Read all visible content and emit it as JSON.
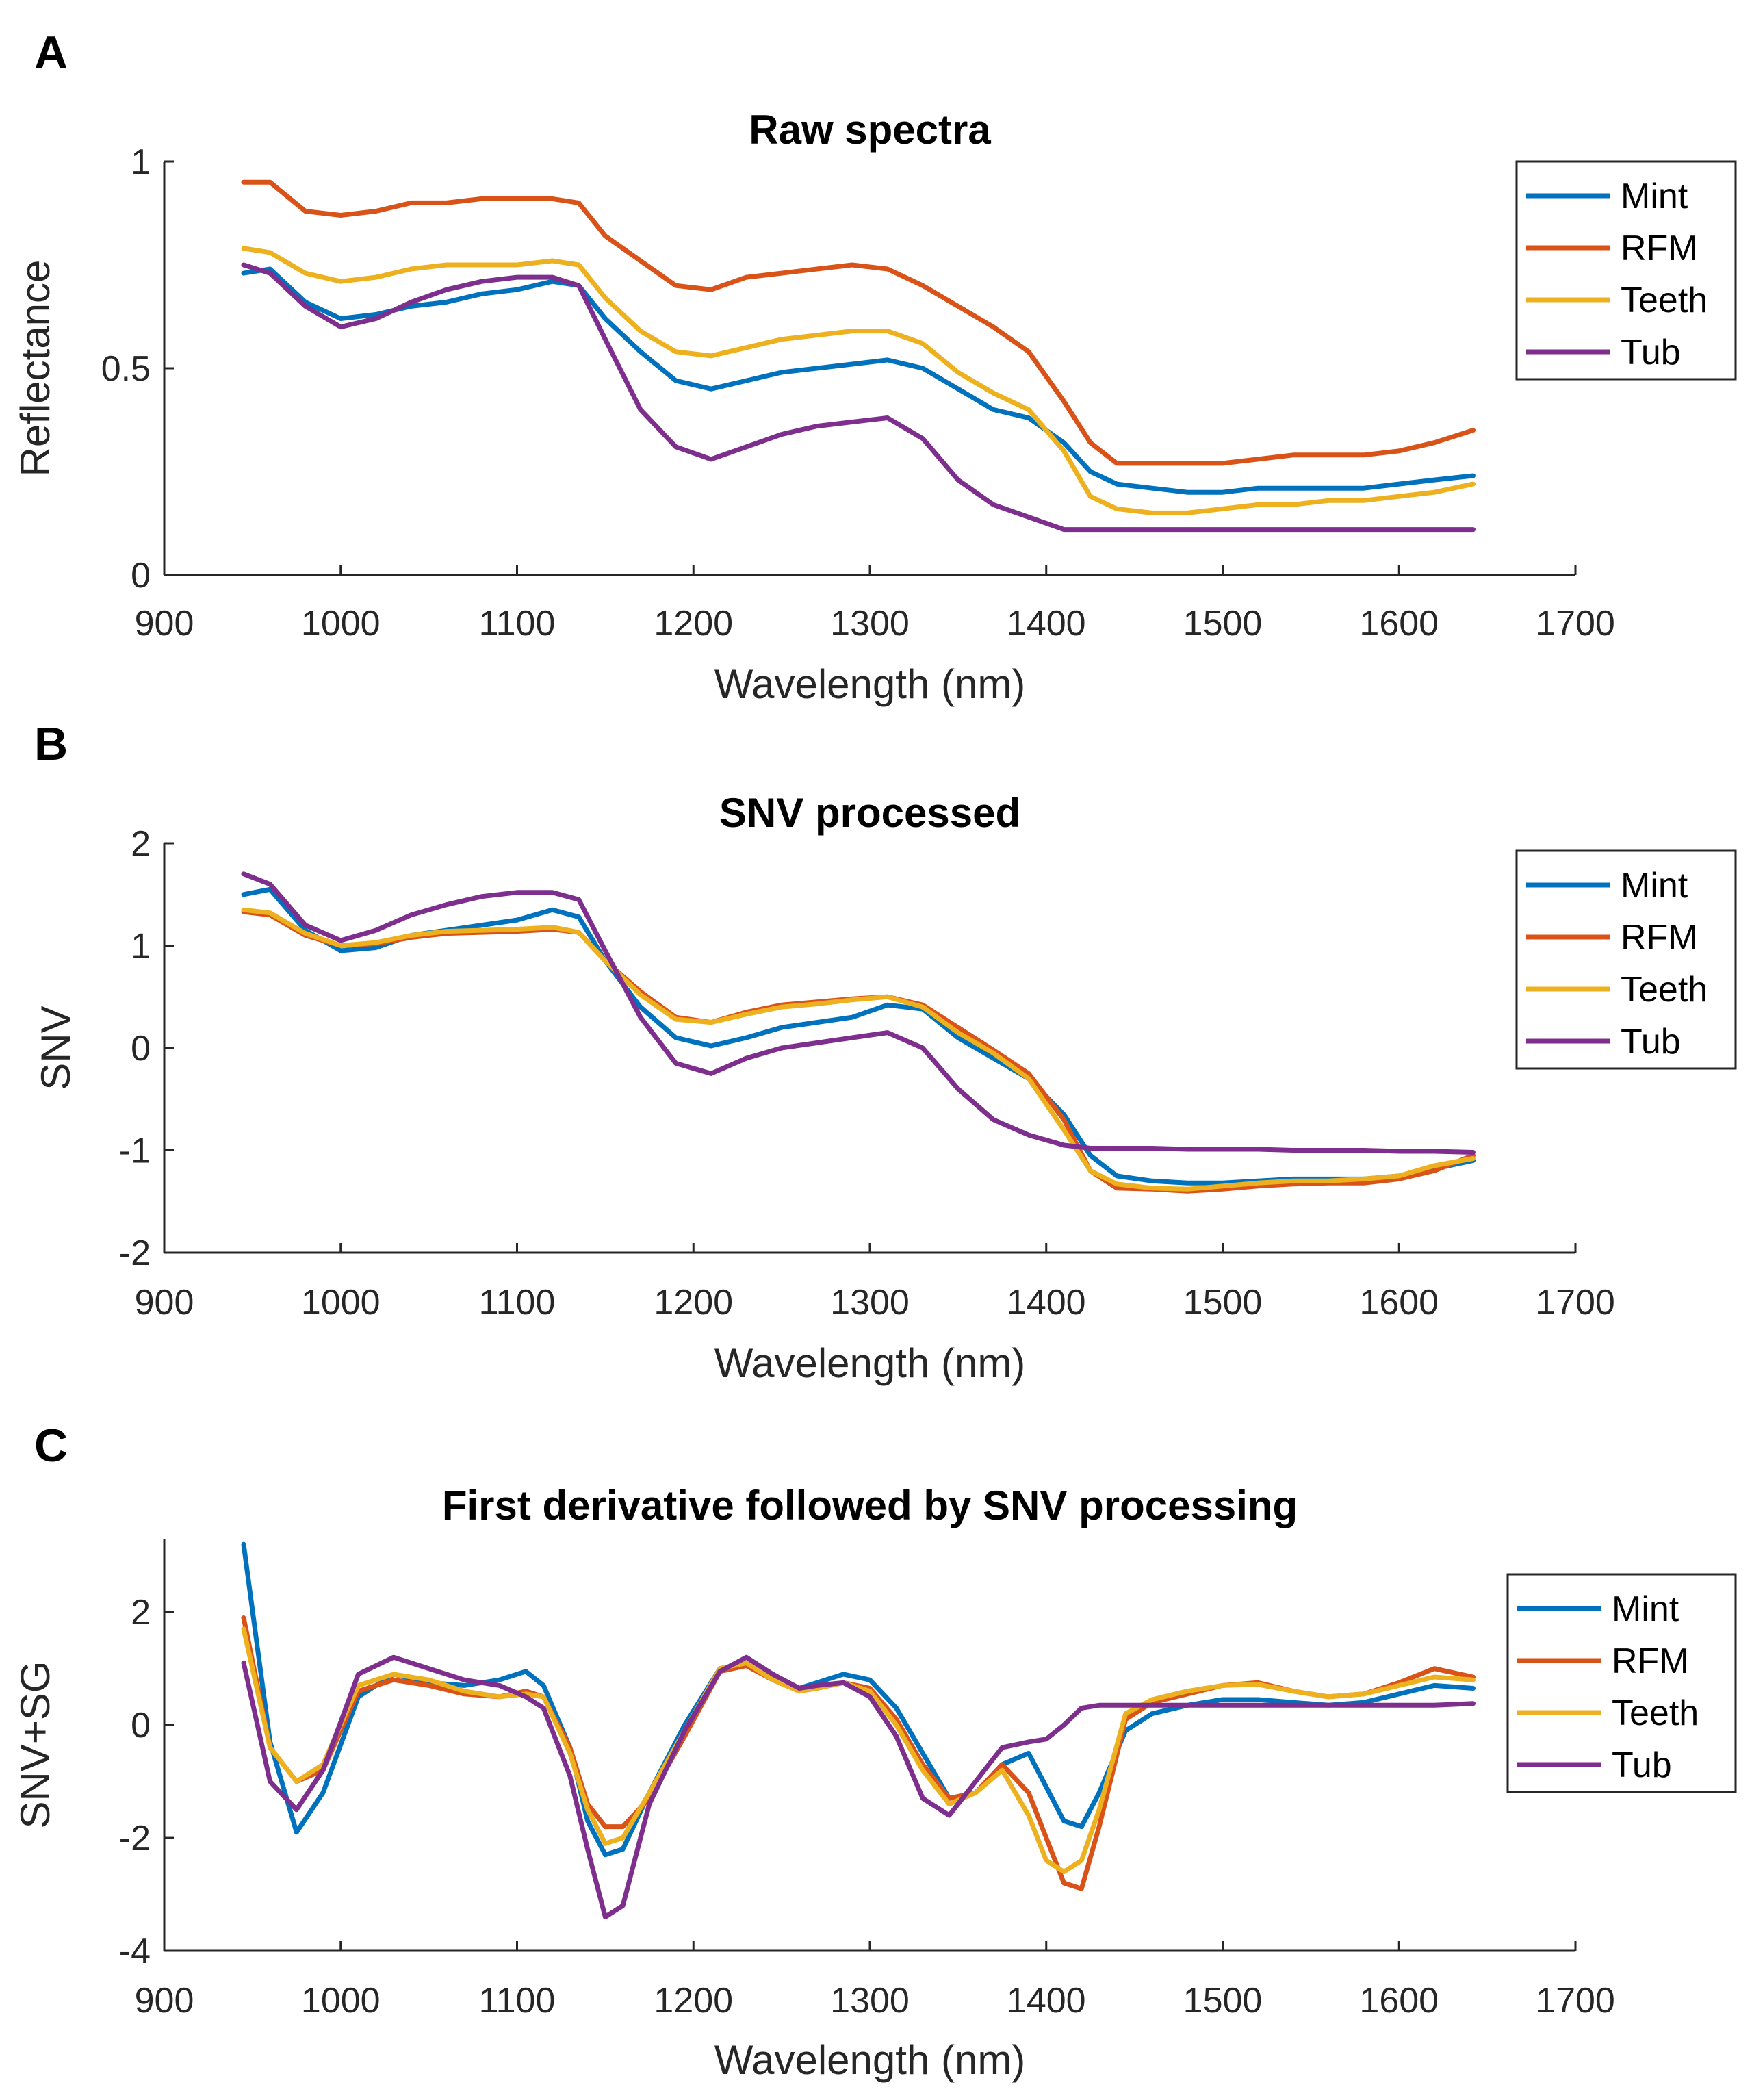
{
  "colors": {
    "Mint": "#0072BD",
    "RFM": "#D95319",
    "Teeth": "#EDB120",
    "Tub": "#7E2F8E"
  },
  "chart_data": [
    {
      "panel_letter": "A",
      "type": "line",
      "title": "Raw spectra",
      "xlabel": "Wavelength (nm)",
      "ylabel": "Reflectance",
      "xlim": [
        900,
        1700
      ],
      "ylim": [
        0,
        1
      ],
      "xticks": [
        900,
        1000,
        1100,
        1200,
        1300,
        1400,
        1500,
        1600,
        1700
      ],
      "yticks": [
        0,
        0.5,
        1
      ],
      "ytick_labels": [
        "0",
        "0.5",
        "1"
      ],
      "legend_position": "top-right",
      "x": [
        945,
        960,
        980,
        1000,
        1020,
        1040,
        1060,
        1080,
        1100,
        1120,
        1135,
        1150,
        1170,
        1190,
        1210,
        1230,
        1250,
        1270,
        1290,
        1310,
        1330,
        1350,
        1370,
        1390,
        1410,
        1425,
        1440,
        1460,
        1480,
        1500,
        1520,
        1540,
        1560,
        1580,
        1600,
        1620,
        1642
      ],
      "series": [
        {
          "name": "Mint",
          "values": [
            0.73,
            0.74,
            0.66,
            0.62,
            0.63,
            0.65,
            0.66,
            0.68,
            0.69,
            0.71,
            0.7,
            0.62,
            0.54,
            0.47,
            0.45,
            0.47,
            0.49,
            0.5,
            0.51,
            0.52,
            0.5,
            0.45,
            0.4,
            0.38,
            0.32,
            0.25,
            0.22,
            0.21,
            0.2,
            0.2,
            0.21,
            0.21,
            0.21,
            0.21,
            0.22,
            0.23,
            0.24
          ]
        },
        {
          "name": "RFM",
          "values": [
            0.95,
            0.95,
            0.88,
            0.87,
            0.88,
            0.9,
            0.9,
            0.91,
            0.91,
            0.91,
            0.9,
            0.82,
            0.76,
            0.7,
            0.69,
            0.72,
            0.73,
            0.74,
            0.75,
            0.74,
            0.7,
            0.65,
            0.6,
            0.54,
            0.42,
            0.32,
            0.27,
            0.27,
            0.27,
            0.27,
            0.28,
            0.29,
            0.29,
            0.29,
            0.3,
            0.32,
            0.35
          ]
        },
        {
          "name": "Teeth",
          "values": [
            0.79,
            0.78,
            0.73,
            0.71,
            0.72,
            0.74,
            0.75,
            0.75,
            0.75,
            0.76,
            0.75,
            0.67,
            0.59,
            0.54,
            0.53,
            0.55,
            0.57,
            0.58,
            0.59,
            0.59,
            0.56,
            0.49,
            0.44,
            0.4,
            0.3,
            0.19,
            0.16,
            0.15,
            0.15,
            0.16,
            0.17,
            0.17,
            0.18,
            0.18,
            0.19,
            0.2,
            0.22
          ]
        },
        {
          "name": "Tub",
          "values": [
            0.75,
            0.73,
            0.65,
            0.6,
            0.62,
            0.66,
            0.69,
            0.71,
            0.72,
            0.72,
            0.7,
            0.57,
            0.4,
            0.31,
            0.28,
            0.31,
            0.34,
            0.36,
            0.37,
            0.38,
            0.33,
            0.23,
            0.17,
            0.14,
            0.11,
            0.11,
            0.11,
            0.11,
            0.11,
            0.11,
            0.11,
            0.11,
            0.11,
            0.11,
            0.11,
            0.11,
            0.11
          ]
        }
      ]
    },
    {
      "panel_letter": "B",
      "type": "line",
      "title": "SNV processed",
      "xlabel": "Wavelength (nm)",
      "ylabel": "SNV",
      "xlim": [
        900,
        1700
      ],
      "ylim": [
        -2,
        2
      ],
      "xticks": [
        900,
        1000,
        1100,
        1200,
        1300,
        1400,
        1500,
        1600,
        1700
      ],
      "yticks": [
        -2,
        -1,
        0,
        1,
        2
      ],
      "ytick_labels": [
        "-2",
        "-1",
        "0",
        "1",
        "2"
      ],
      "legend_position": "top-right",
      "x": [
        945,
        960,
        980,
        1000,
        1020,
        1040,
        1060,
        1080,
        1100,
        1120,
        1135,
        1150,
        1170,
        1190,
        1210,
        1230,
        1250,
        1270,
        1290,
        1310,
        1330,
        1350,
        1370,
        1390,
        1410,
        1425,
        1440,
        1460,
        1480,
        1500,
        1520,
        1540,
        1560,
        1580,
        1600,
        1620,
        1642
      ],
      "series": [
        {
          "name": "Mint",
          "values": [
            1.5,
            1.55,
            1.15,
            0.95,
            0.98,
            1.1,
            1.15,
            1.2,
            1.25,
            1.35,
            1.28,
            0.85,
            0.4,
            0.1,
            0.02,
            0.1,
            0.2,
            0.25,
            0.3,
            0.42,
            0.38,
            0.1,
            -0.1,
            -0.3,
            -0.65,
            -1.05,
            -1.25,
            -1.3,
            -1.32,
            -1.32,
            -1.3,
            -1.28,
            -1.28,
            -1.28,
            -1.25,
            -1.18,
            -1.1
          ]
        },
        {
          "name": "RFM",
          "values": [
            1.33,
            1.3,
            1.1,
            1.0,
            1.02,
            1.08,
            1.12,
            1.13,
            1.14,
            1.16,
            1.13,
            0.85,
            0.55,
            0.3,
            0.25,
            0.35,
            0.42,
            0.45,
            0.48,
            0.5,
            0.42,
            0.2,
            -0.02,
            -0.25,
            -0.7,
            -1.2,
            -1.37,
            -1.38,
            -1.4,
            -1.38,
            -1.35,
            -1.33,
            -1.32,
            -1.32,
            -1.28,
            -1.2,
            -1.05
          ]
        },
        {
          "name": "Teeth",
          "values": [
            1.35,
            1.32,
            1.12,
            1.0,
            1.03,
            1.1,
            1.14,
            1.15,
            1.16,
            1.18,
            1.13,
            0.85,
            0.52,
            0.28,
            0.25,
            0.33,
            0.4,
            0.43,
            0.47,
            0.5,
            0.4,
            0.15,
            -0.05,
            -0.3,
            -0.8,
            -1.2,
            -1.33,
            -1.37,
            -1.38,
            -1.35,
            -1.32,
            -1.3,
            -1.3,
            -1.28,
            -1.25,
            -1.15,
            -1.08
          ]
        },
        {
          "name": "Tub",
          "values": [
            1.7,
            1.6,
            1.2,
            1.05,
            1.15,
            1.3,
            1.4,
            1.48,
            1.52,
            1.52,
            1.45,
            0.95,
            0.3,
            -0.15,
            -0.25,
            -0.1,
            0.0,
            0.05,
            0.1,
            0.15,
            0.0,
            -0.4,
            -0.7,
            -0.85,
            -0.95,
            -0.98,
            -0.98,
            -0.98,
            -0.99,
            -0.99,
            -0.99,
            -1.0,
            -1.0,
            -1.0,
            -1.01,
            -1.01,
            -1.02
          ]
        }
      ]
    },
    {
      "panel_letter": "C",
      "type": "line",
      "title": "First derivative followed by SNV processing",
      "xlabel": "Wavelength (nm)",
      "ylabel": "SNV+SG",
      "xlim": [
        900,
        1700
      ],
      "ylim": [
        -4,
        3.3
      ],
      "xticks": [
        900,
        1000,
        1100,
        1200,
        1300,
        1400,
        1500,
        1600,
        1700
      ],
      "yticks": [
        -4,
        -2,
        0,
        2
      ],
      "ytick_labels": [
        "-4",
        "-2",
        "0",
        "2"
      ],
      "legend_position": "top-right",
      "x": [
        945,
        960,
        975,
        990,
        1010,
        1030,
        1050,
        1070,
        1090,
        1105,
        1115,
        1130,
        1140,
        1150,
        1160,
        1175,
        1195,
        1215,
        1230,
        1245,
        1260,
        1270,
        1285,
        1300,
        1315,
        1330,
        1345,
        1360,
        1375,
        1390,
        1400,
        1410,
        1420,
        1430,
        1445,
        1460,
        1480,
        1500,
        1520,
        1540,
        1560,
        1580,
        1600,
        1620,
        1642
      ],
      "series": [
        {
          "name": "Mint",
          "values": [
            3.2,
            -0.3,
            -1.9,
            -1.2,
            0.5,
            0.9,
            0.75,
            0.7,
            0.8,
            0.95,
            0.7,
            -0.4,
            -1.7,
            -2.3,
            -2.2,
            -1.2,
            0.0,
            1.0,
            1.1,
            0.85,
            0.65,
            0.75,
            0.9,
            0.8,
            0.3,
            -0.5,
            -1.3,
            -1.2,
            -0.7,
            -0.5,
            -1.1,
            -1.7,
            -1.8,
            -1.2,
            -0.1,
            0.2,
            0.35,
            0.45,
            0.45,
            0.4,
            0.35,
            0.4,
            0.55,
            0.7,
            0.65
          ]
        },
        {
          "name": "RFM",
          "values": [
            1.9,
            -0.4,
            -1.0,
            -0.8,
            0.6,
            0.8,
            0.7,
            0.55,
            0.5,
            0.6,
            0.5,
            -0.4,
            -1.4,
            -1.8,
            -1.8,
            -1.3,
            -0.2,
            0.95,
            1.05,
            0.8,
            0.6,
            0.65,
            0.75,
            0.65,
            0.1,
            -0.7,
            -1.3,
            -1.2,
            -0.7,
            -1.2,
            -2.0,
            -2.8,
            -2.9,
            -1.8,
            0.1,
            0.4,
            0.55,
            0.7,
            0.75,
            0.6,
            0.5,
            0.55,
            0.75,
            1.0,
            0.85
          ]
        },
        {
          "name": "Teeth",
          "values": [
            1.7,
            -0.4,
            -1.0,
            -0.7,
            0.7,
            0.9,
            0.8,
            0.6,
            0.5,
            0.55,
            0.5,
            -0.5,
            -1.5,
            -2.1,
            -2.0,
            -1.2,
            -0.1,
            1.0,
            1.1,
            0.8,
            0.6,
            0.65,
            0.75,
            0.6,
            0.0,
            -0.8,
            -1.4,
            -1.2,
            -0.8,
            -1.6,
            -2.4,
            -2.6,
            -2.4,
            -1.5,
            0.2,
            0.45,
            0.6,
            0.7,
            0.72,
            0.6,
            0.5,
            0.55,
            0.7,
            0.85,
            0.8
          ]
        },
        {
          "name": "Tub",
          "values": [
            1.1,
            -1.0,
            -1.5,
            -0.8,
            0.9,
            1.2,
            1.0,
            0.8,
            0.7,
            0.5,
            0.3,
            -0.9,
            -2.2,
            -3.4,
            -3.2,
            -1.4,
            -0.1,
            0.95,
            1.2,
            0.9,
            0.65,
            0.7,
            0.75,
            0.5,
            -0.2,
            -1.3,
            -1.6,
            -1.0,
            -0.4,
            -0.3,
            -0.25,
            0.0,
            0.3,
            0.35,
            0.35,
            0.35,
            0.35,
            0.35,
            0.35,
            0.35,
            0.35,
            0.35,
            0.35,
            0.35,
            0.38
          ]
        }
      ]
    }
  ]
}
